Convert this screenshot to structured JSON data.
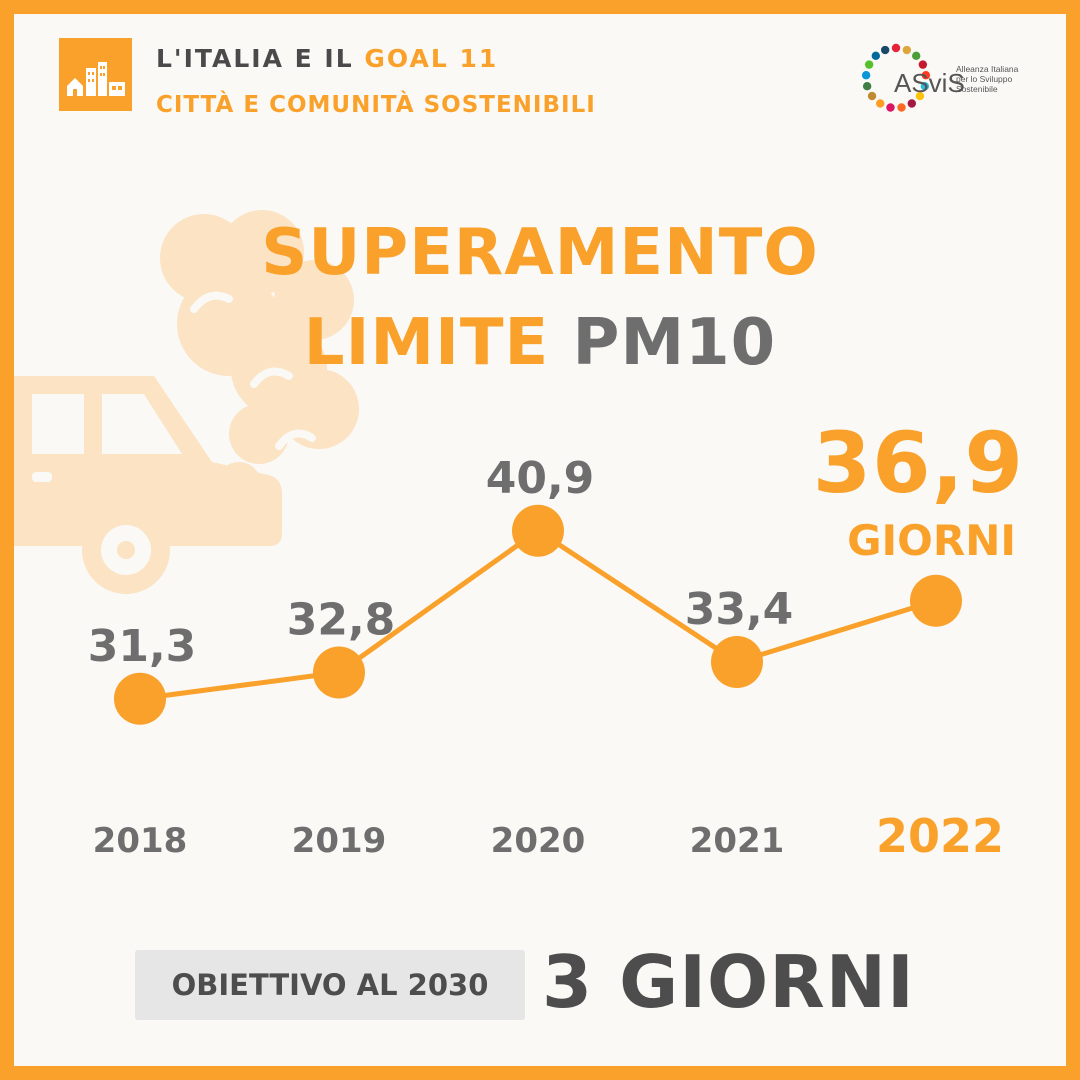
{
  "header": {
    "line1_prefix": "L'ITALIA E IL",
    "line1_accent": "GOAL 11",
    "line2": "CITTÀ E COMUNITÀ SOSTENIBILI",
    "goal_icon": "city-buildings-icon"
  },
  "logo": {
    "name": "ASviS",
    "tagline": [
      "Alleanza Italiana",
      "per lo Sviluppo",
      "Sostenibile"
    ]
  },
  "title": {
    "line1": "SUPERAMENTO",
    "line2_accent": "LIMITE",
    "line2_grey": "PM10"
  },
  "highlight": {
    "value": "36,9",
    "unit": "GIORNI"
  },
  "target": {
    "label": "OBIETTIVO AL 2030",
    "value": "3 GIORNI"
  },
  "colors": {
    "accent": "#f9a12a",
    "grey": "#6e6e6e",
    "background": "#faf9f6",
    "car_watermark": "#fbe3c4"
  },
  "chart_data": {
    "type": "line",
    "categories": [
      "2018",
      "2019",
      "2020",
      "2021",
      "2022"
    ],
    "values": [
      31.3,
      32.8,
      40.9,
      33.4,
      36.9
    ],
    "labels": [
      "31,3",
      "32,8",
      "40,9",
      "33,4",
      "36,9"
    ],
    "highlight_index": 4,
    "ylim": [
      29,
      43
    ],
    "grid": false,
    "legend": "none"
  }
}
